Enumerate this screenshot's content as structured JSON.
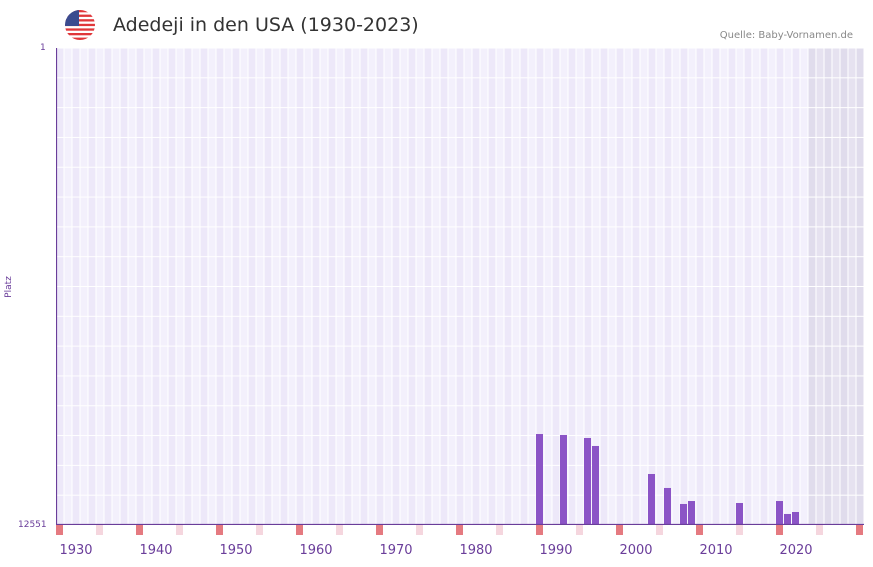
{
  "header": {
    "title": "Adedeji in den USA (1930-2023)",
    "source": "Quelle: Baby-Vornamen.de",
    "flag_icon": "us-flag-icon"
  },
  "colors": {
    "bar": "#8b54c6",
    "axis": "#6a3d9a",
    "decade_marker": "#e57a80",
    "half_decade_marker": "#f5d6de",
    "grid_bg": "#f2eefb",
    "future_shade": "#e3dfee"
  },
  "chart_data": {
    "type": "bar",
    "title": "Adedeji in den USA (1930-2023)",
    "xlabel": "",
    "ylabel": "Platz",
    "y_inverted": true,
    "ylim": [
      1,
      12551
    ],
    "y_ticks": [
      "1",
      "12551"
    ],
    "x_range": [
      1928,
      2028
    ],
    "x_ticks": [
      "1930",
      "1940",
      "1950",
      "1960",
      "1970",
      "1980",
      "1990",
      "2000",
      "2010",
      "2020"
    ],
    "grid": true,
    "shaded_from_year": 2022,
    "categories": [
      1988,
      1991,
      1994,
      1995,
      2002,
      2004,
      2006,
      2007,
      2013,
      2018,
      2019,
      2020
    ],
    "values": [
      10157,
      10183,
      10262,
      10472,
      11209,
      11577,
      11998,
      11920,
      11972,
      11920,
      12261,
      12209
    ]
  },
  "axis": {
    "y_top": "1",
    "y_bottom": "12551",
    "y_title": "Platz"
  }
}
